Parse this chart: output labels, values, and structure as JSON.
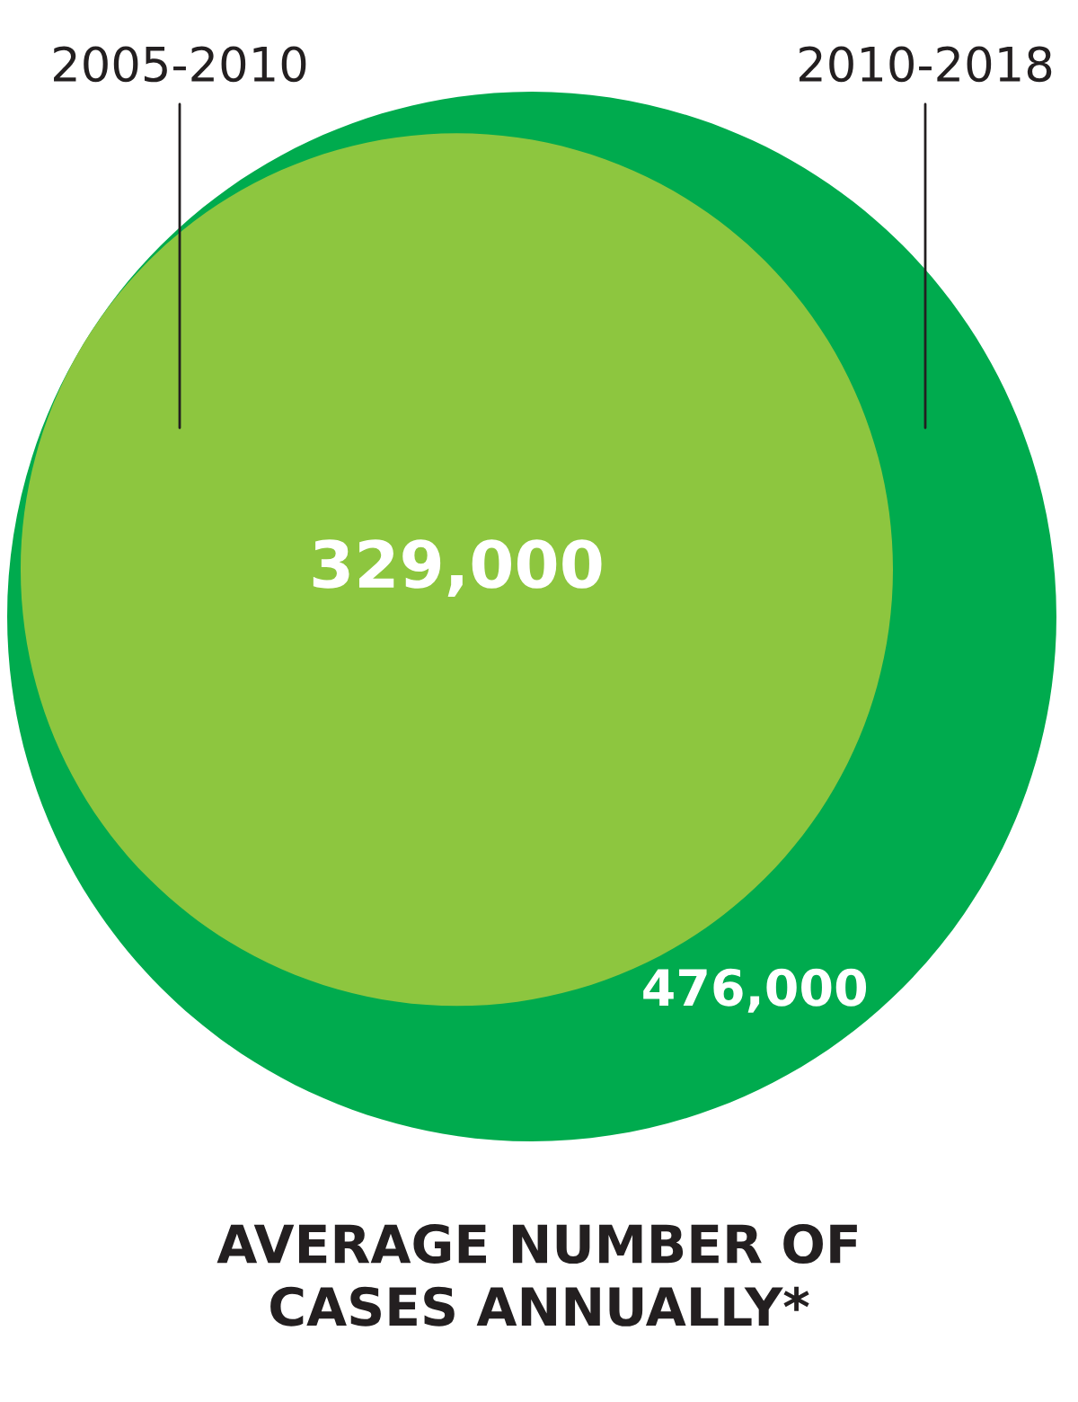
{
  "chart_data": {
    "type": "other",
    "title": "AVERAGE NUMBER OF\nCASES ANNUALLY*",
    "categories": [
      "2005-2010",
      "2010-2018"
    ],
    "values": [
      329000,
      476000
    ],
    "colors": [
      "#8dc63f",
      "#00ab4e"
    ],
    "value_labels": [
      "329,000",
      "476,000"
    ]
  }
}
